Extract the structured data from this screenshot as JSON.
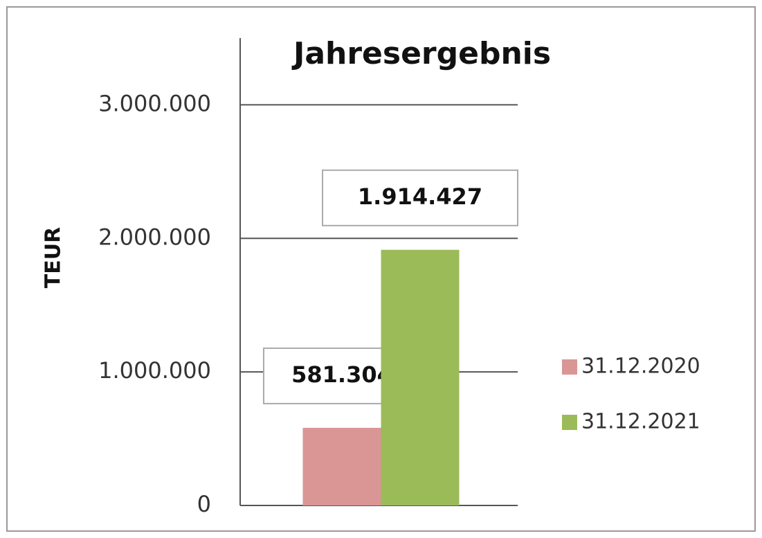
{
  "chart_data": {
    "type": "bar",
    "title": "Jahresergebnis",
    "y_label": "TEUR",
    "categories": [
      null
    ],
    "series": [
      {
        "name": "31.12.2020",
        "color": "#d99694",
        "values": [
          581304
        ],
        "value_labels": [
          "581.304"
        ]
      },
      {
        "name": "31.12.2021",
        "color": "#9bbb59",
        "values": [
          1914427
        ],
        "value_labels": [
          "1.914.427"
        ]
      }
    ],
    "ylim": [
      0,
      3500000
    ],
    "yticks": [
      0,
      {
        "value": 1000000,
        "label": "1.000.000"
      },
      {
        "value": 2000000,
        "label": "2.000.000"
      },
      {
        "value": 3000000,
        "label": "3.000.000"
      }
    ],
    "grid": true,
    "legend": "right"
  }
}
